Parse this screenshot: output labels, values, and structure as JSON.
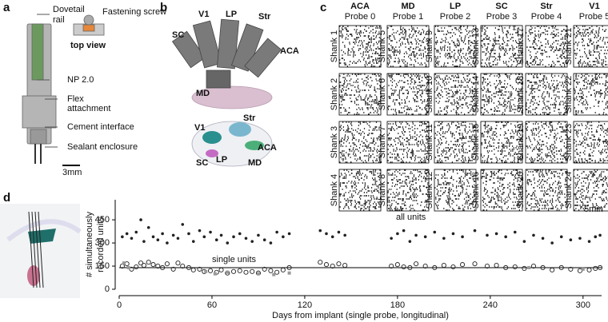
{
  "panel_labels": [
    "a",
    "b",
    "c",
    "d"
  ],
  "panel_a": {
    "dovetail_rail": [
      "Dovetail",
      "rail"
    ],
    "fastening_screw": "Fastening screw",
    "top_view": "top view",
    "np": "NP 2.0",
    "flex_attachment": [
      "Flex",
      "attachment"
    ],
    "cement_interface": "Cement interface",
    "sealant_enclosure": "Sealant enclosure",
    "scale_bar": "3mm"
  },
  "panel_b": {
    "top_regions": [
      {
        "name": "V1",
        "color": "#1f7a8a"
      },
      {
        "name": "LP",
        "color": "#b05a8a"
      },
      {
        "name": "Str",
        "color": "#6aa6bf"
      },
      {
        "name": "SC",
        "color": "#b45fb4"
      },
      {
        "name": "ACA",
        "color": "#4caf7a"
      },
      {
        "name": "MD",
        "color": "#b07aa0"
      }
    ],
    "bottom_regions": [
      {
        "name": "V1",
        "color": "#1f7a8a"
      },
      {
        "name": "Str",
        "color": "#6aa6bf"
      },
      {
        "name": "SC",
        "color": "#b45fb4"
      },
      {
        "name": "LP",
        "color": "#b05a8a"
      },
      {
        "name": "ACA",
        "color": "#4caf7a"
      },
      {
        "name": "MD",
        "color": "#b07aa0"
      }
    ]
  },
  "panel_c": {
    "probes": [
      {
        "region": "ACA",
        "name": "Probe 0",
        "color": "#4caf7a",
        "shanks": [
          "Shank 1",
          "Shank 2",
          "Shank 3",
          "Shank 4"
        ]
      },
      {
        "region": "MD",
        "name": "Probe 1",
        "color": "#b07aa0",
        "shanks": [
          "Shank 5",
          "Shank 6",
          "Shank 7",
          "Shank 8"
        ]
      },
      {
        "region": "LP",
        "name": "Probe 2",
        "color": "#b05a8a",
        "shanks": [
          "Shank 9",
          "Shank 10",
          "Shank 11",
          "Shank 12"
        ]
      },
      {
        "region": "SC",
        "name": "Probe 3",
        "color": "#b45fb4",
        "shanks": [
          "Shank 13",
          "Shank 14",
          "Shank 15",
          "Shank 16"
        ]
      },
      {
        "region": "Str",
        "name": "Probe 4",
        "color": "#6aa6bf",
        "shanks": [
          "Shank 17",
          "Shank 18",
          "Shank 19",
          "Shank 20"
        ]
      },
      {
        "region": "V1",
        "name": "Probe 5",
        "color": "#1f7a8a",
        "shanks": [
          "Shank 21",
          "Shank 22",
          "Shank 23",
          "Shank 24"
        ]
      }
    ],
    "scale_bar": "5min"
  },
  "chart_data": {
    "type": "scatter",
    "xlabel": "Days from implant (single probe, longitudinal)",
    "ylabel": [
      "# simultaneously",
      "recorded units"
    ],
    "xlim": [
      0,
      312
    ],
    "xticks": [
      0,
      60,
      120,
      180,
      240,
      300
    ],
    "ylim": [
      0,
      580
    ],
    "yticks": [
      0,
      150,
      300,
      450
    ],
    "reference_line": 140,
    "series": [
      {
        "name": "all units",
        "color": "#222222",
        "marker": "dot",
        "x": [
          2,
          5,
          8,
          11,
          14,
          16,
          19,
          22,
          25,
          28,
          31,
          35,
          38,
          41,
          45,
          48,
          52,
          55,
          59,
          63,
          66,
          70,
          74,
          78,
          82,
          86,
          90,
          94,
          98,
          102,
          106,
          110,
          130,
          134,
          138,
          142,
          146,
          176,
          180,
          184,
          188,
          192,
          198,
          204,
          210,
          216,
          222,
          230,
          238,
          244,
          250,
          256,
          262,
          268,
          274,
          280,
          286,
          292,
          298,
          304,
          308,
          311
        ],
        "values": [
          340,
          360,
          330,
          370,
          450,
          310,
          400,
          340,
          320,
          360,
          300,
          350,
          330,
          420,
          360,
          310,
          380,
          340,
          370,
          320,
          350,
          300,
          340,
          360,
          330,
          310,
          350,
          320,
          300,
          370,
          340,
          360,
          380,
          360,
          340,
          370,
          350,
          330,
          360,
          380,
          310,
          350,
          340,
          370,
          330,
          360,
          340,
          380,
          350,
          360,
          340,
          370,
          310,
          350,
          330,
          300,
          340,
          320,
          330,
          310,
          340,
          350
        ]
      },
      {
        "name": "single units",
        "color": "#222222",
        "marker": "circle",
        "x": [
          2,
          5,
          8,
          11,
          14,
          16,
          19,
          22,
          25,
          28,
          31,
          35,
          38,
          41,
          45,
          48,
          52,
          55,
          59,
          63,
          66,
          70,
          74,
          78,
          82,
          86,
          90,
          94,
          98,
          102,
          106,
          110,
          130,
          134,
          138,
          142,
          146,
          176,
          180,
          184,
          188,
          192,
          198,
          204,
          210,
          216,
          222,
          230,
          238,
          244,
          250,
          256,
          262,
          268,
          274,
          280,
          286,
          292,
          298,
          304,
          308,
          311
        ],
        "values": [
          150,
          165,
          130,
          145,
          170,
          155,
          175,
          160,
          150,
          140,
          165,
          130,
          170,
          150,
          140,
          125,
          130,
          115,
          120,
          110,
          125,
          105,
          115,
          120,
          110,
          115,
          105,
          130,
          120,
          110,
          125,
          140,
          175,
          160,
          150,
          165,
          155,
          150,
          160,
          145,
          140,
          165,
          150,
          140,
          155,
          145,
          160,
          165,
          150,
          155,
          140,
          145,
          135,
          150,
          140,
          125,
          140,
          130,
          120,
          125,
          135,
          140
        ]
      },
      {
        "color": "#999999",
        "marker": "square",
        "x": [
          3,
          6,
          56,
          62,
          70,
          90,
          100,
          110,
          265,
          300
        ],
        "values": [
          170,
          140,
          115,
          100,
          110,
          100,
          95,
          105,
          140,
          130
        ]
      }
    ]
  }
}
